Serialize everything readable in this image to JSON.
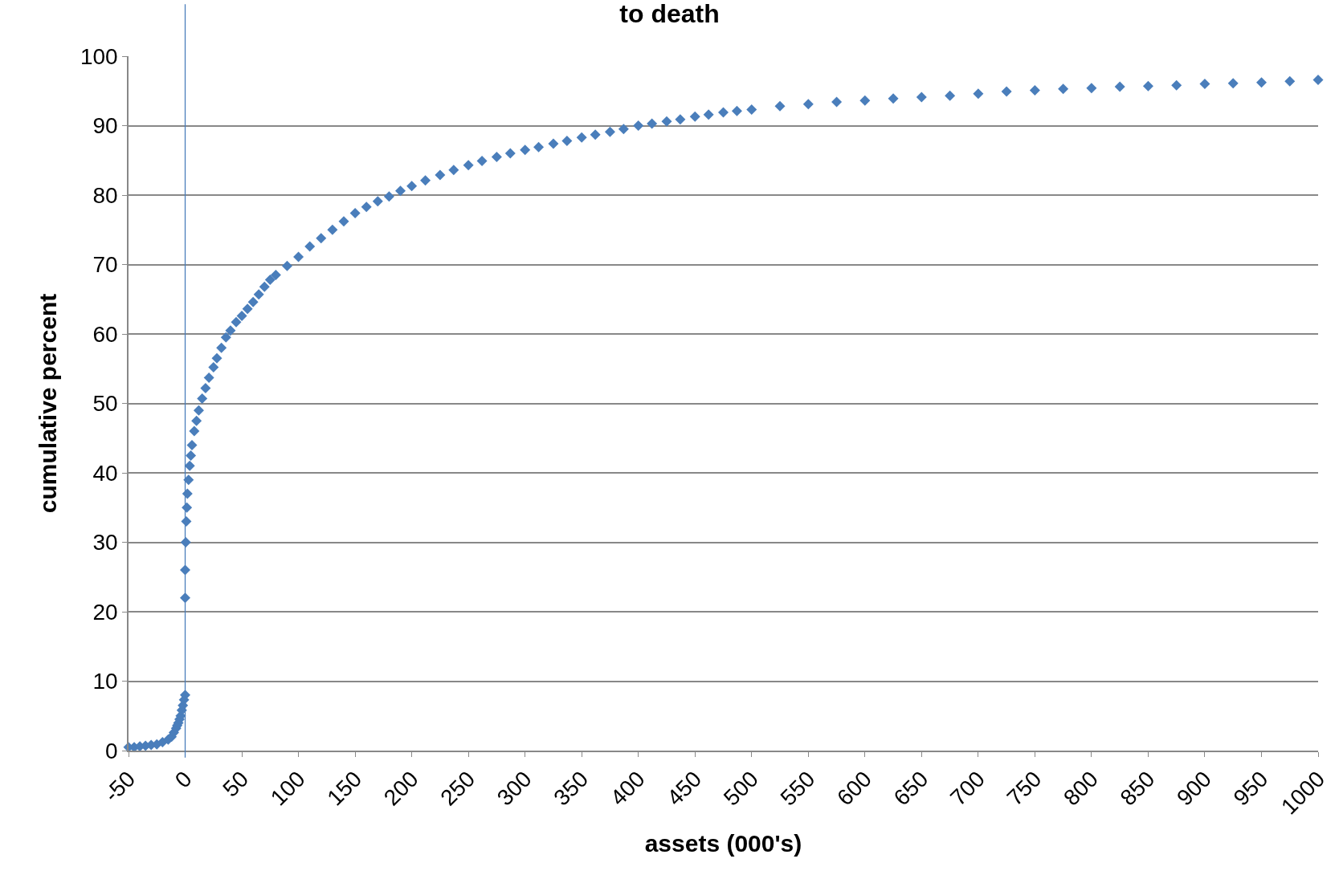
{
  "chart_data": {
    "type": "scatter",
    "title": "to death",
    "xlabel": "assets (000's)",
    "ylabel": "cumulative percent",
    "series": [
      {
        "color": "#4a7ebb",
        "x": [
          -50,
          -45,
          -40,
          -35,
          -30,
          -25,
          -20,
          -15,
          -12,
          -10,
          -8,
          -7,
          -6,
          -5,
          -4,
          -3,
          -2,
          -1,
          0,
          0,
          0,
          0.5,
          1,
          1.5,
          2,
          3,
          4,
          5,
          6,
          8,
          10,
          12,
          15,
          18,
          21,
          25,
          28,
          32,
          36,
          40,
          45,
          50,
          55,
          60,
          65,
          70,
          75,
          80,
          90,
          100,
          110,
          120,
          130,
          140,
          150,
          160,
          170,
          180,
          190,
          200,
          212,
          225,
          237,
          250,
          262,
          275,
          287,
          300,
          312,
          325,
          337,
          350,
          362,
          375,
          387,
          400,
          412,
          425,
          437,
          450,
          462,
          475,
          487,
          500,
          525,
          550,
          575,
          600,
          625,
          650,
          675,
          700,
          725,
          750,
          775,
          800,
          825,
          850,
          875,
          900,
          925,
          950,
          975,
          1000
        ],
        "values": [
          0.5,
          0.5,
          0.6,
          0.7,
          0.8,
          0.9,
          1.2,
          1.6,
          2.0,
          2.6,
          3.2,
          3.6,
          4.0,
          4.5,
          5.0,
          5.8,
          6.5,
          7.3,
          8,
          22,
          26,
          30,
          33,
          35,
          37,
          39,
          41,
          42.5,
          44,
          46,
          47.5,
          49,
          50.7,
          52.2,
          53.7,
          55.2,
          56.5,
          58,
          59.5,
          60.5,
          61.7,
          62.6,
          63.6,
          64.6,
          65.7,
          66.8,
          67.8,
          68.5,
          69.8,
          71.1,
          72.6,
          73.8,
          75,
          76.2,
          77.4,
          78.3,
          79.1,
          79.8,
          80.6,
          81.3,
          82.1,
          82.9,
          83.6,
          84.3,
          84.9,
          85.5,
          86,
          86.5,
          86.9,
          87.4,
          87.8,
          88.3,
          88.7,
          89.1,
          89.5,
          90,
          90.3,
          90.6,
          90.9,
          91.3,
          91.6,
          91.9,
          92.1,
          92.3,
          92.8,
          93.1,
          93.4,
          93.6,
          93.9,
          94.1,
          94.3,
          94.6,
          94.9,
          95.1,
          95.3,
          95.4,
          95.6,
          95.7,
          95.8,
          96,
          96.1,
          96.2,
          96.4,
          96.6
        ]
      }
    ],
    "xlim": [
      -50,
      1000
    ],
    "xticks": [
      -50,
      0,
      50,
      100,
      150,
      200,
      250,
      300,
      350,
      400,
      450,
      500,
      550,
      600,
      650,
      700,
      750,
      800,
      850,
      900,
      950,
      1000
    ],
    "ylim": [
      0,
      100
    ],
    "yticks": [
      0,
      10,
      20,
      30,
      40,
      50,
      60,
      70,
      80,
      90,
      100
    ],
    "grid": "y",
    "marker": "diamond",
    "ref_lines": [
      {
        "axis": "x",
        "value": 0,
        "color": "#4a7ebb"
      }
    ]
  }
}
